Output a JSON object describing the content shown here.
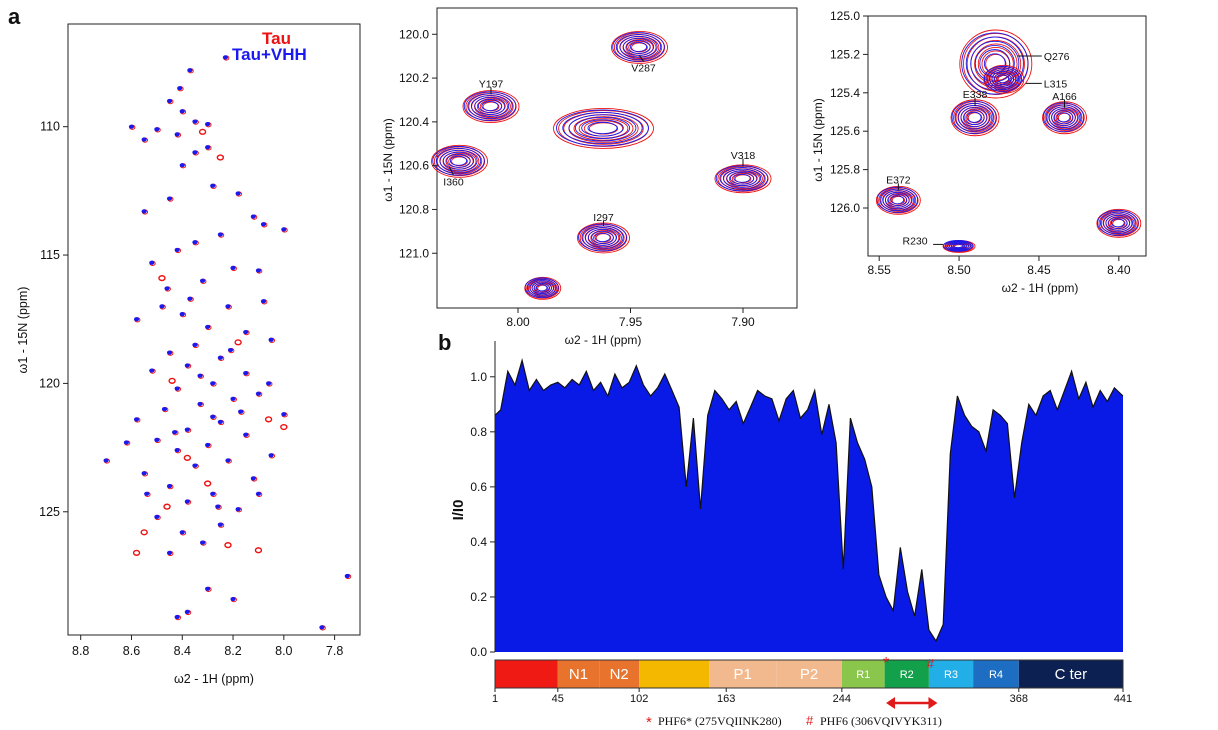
{
  "panel_a_label": "a",
  "panel_b_label": "b",
  "colors": {
    "tau": "#ee1111",
    "vhh": "#1a1aee",
    "fill": "#0a1ae6"
  },
  "chart_data": [
    {
      "type": "scatter",
      "panel": "a-full",
      "legend": [
        "Tau",
        "Tau+VHH"
      ],
      "legend_position": "top-right",
      "xlabel": "ω2 - 1H  (ppm)",
      "ylabel": "ω1 - 15N  (ppm)",
      "xlim": [
        8.85,
        7.7
      ],
      "ylim": [
        129.8,
        106.0
      ],
      "xticks": [
        "8.8",
        "8.6",
        "8.4",
        "8.2",
        "8.0",
        "7.8"
      ],
      "yticks": [
        "110",
        "115",
        "120",
        "125"
      ],
      "peaks_blue": [
        [
          8.23,
          107.3
        ],
        [
          8.37,
          107.8
        ],
        [
          8.41,
          108.5
        ],
        [
          8.45,
          109.0
        ],
        [
          8.4,
          109.4
        ],
        [
          8.35,
          109.8
        ],
        [
          8.3,
          109.9
        ],
        [
          8.42,
          110.3
        ],
        [
          8.5,
          110.1
        ],
        [
          8.55,
          110.5
        ],
        [
          8.6,
          110.0
        ],
        [
          8.35,
          111.0
        ],
        [
          8.3,
          110.8
        ],
        [
          8.4,
          111.5
        ],
        [
          8.28,
          112.3
        ],
        [
          8.18,
          112.6
        ],
        [
          8.45,
          112.8
        ],
        [
          8.55,
          113.3
        ],
        [
          8.12,
          113.5
        ],
        [
          8.08,
          113.8
        ],
        [
          8.0,
          114.0
        ],
        [
          8.25,
          114.2
        ],
        [
          8.35,
          114.5
        ],
        [
          8.42,
          114.8
        ],
        [
          8.52,
          115.3
        ],
        [
          8.2,
          115.5
        ],
        [
          8.1,
          115.6
        ],
        [
          8.32,
          116.0
        ],
        [
          8.46,
          116.3
        ],
        [
          8.08,
          116.8
        ],
        [
          8.22,
          117.0
        ],
        [
          8.4,
          117.3
        ],
        [
          8.58,
          117.5
        ],
        [
          8.3,
          117.8
        ],
        [
          8.15,
          118.0
        ],
        [
          8.05,
          118.3
        ],
        [
          8.35,
          118.5
        ],
        [
          8.45,
          118.8
        ],
        [
          8.25,
          119.0
        ],
        [
          8.38,
          119.3
        ],
        [
          8.52,
          119.5
        ],
        [
          8.15,
          119.6
        ],
        [
          8.28,
          120.0
        ],
        [
          8.42,
          120.2
        ],
        [
          8.1,
          120.4
        ],
        [
          8.2,
          120.6
        ],
        [
          8.33,
          120.8
        ],
        [
          8.47,
          121.0
        ],
        [
          8.0,
          121.2
        ],
        [
          8.58,
          121.4
        ],
        [
          8.25,
          121.5
        ],
        [
          8.38,
          121.8
        ],
        [
          8.15,
          122.0
        ],
        [
          8.5,
          122.2
        ],
        [
          8.3,
          122.4
        ],
        [
          8.42,
          122.6
        ],
        [
          8.05,
          122.8
        ],
        [
          8.22,
          123.0
        ],
        [
          8.35,
          123.2
        ],
        [
          8.55,
          123.5
        ],
        [
          8.12,
          123.7
        ],
        [
          8.45,
          124.0
        ],
        [
          8.28,
          124.3
        ],
        [
          8.38,
          124.6
        ],
        [
          8.18,
          124.9
        ],
        [
          8.5,
          125.2
        ],
        [
          8.25,
          125.5
        ],
        [
          8.4,
          125.8
        ],
        [
          8.32,
          126.2
        ],
        [
          8.45,
          126.6
        ],
        [
          8.3,
          128.0
        ],
        [
          8.2,
          128.4
        ],
        [
          8.38,
          128.9
        ],
        [
          8.42,
          129.1
        ],
        [
          8.7,
          123.0
        ],
        [
          7.75,
          127.5
        ],
        [
          7.85,
          129.5
        ],
        [
          8.28,
          121.3
        ],
        [
          8.33,
          119.7
        ],
        [
          8.48,
          117.0
        ],
        [
          8.21,
          118.7
        ],
        [
          8.37,
          116.7
        ],
        [
          8.43,
          121.9
        ],
        [
          8.26,
          124.8
        ],
        [
          8.17,
          121.1
        ],
        [
          8.06,
          120.0
        ],
        [
          8.54,
          124.3
        ],
        [
          8.62,
          122.3
        ],
        [
          8.1,
          124.3
        ]
      ],
      "peaks_red": [
        [
          8.32,
          110.2
        ],
        [
          8.25,
          111.2
        ],
        [
          8.48,
          115.9
        ],
        [
          8.18,
          118.4
        ],
        [
          8.06,
          121.4
        ],
        [
          8.38,
          122.9
        ],
        [
          8.46,
          124.8
        ],
        [
          8.55,
          125.8
        ],
        [
          8.22,
          126.3
        ],
        [
          8.1,
          126.5
        ],
        [
          8.0,
          121.7
        ],
        [
          8.3,
          123.9
        ],
        [
          8.44,
          119.9
        ],
        [
          8.58,
          126.6
        ]
      ]
    },
    {
      "type": "scatter",
      "panel": "a-zoom1",
      "xlabel": "ω2 - 1H  (ppm)",
      "ylabel": "ω1 - 15N  (ppm)",
      "xlim": [
        8.036,
        7.876
      ],
      "ylim": [
        119.88,
        121.25
      ],
      "xticks": [
        "8.00",
        "7.95",
        "7.90"
      ],
      "yticks": [
        "120.0",
        "120.2",
        "120.4",
        "120.6",
        "120.8",
        "121.0"
      ],
      "peaks": [
        {
          "label": "Y197",
          "x": 8.012,
          "y": 120.33
        },
        {
          "label": "V287",
          "x": 7.946,
          "y": 120.06
        },
        {
          "label": "",
          "x": 7.962,
          "y": 120.43
        },
        {
          "label": "I360",
          "x": 8.026,
          "y": 120.58
        },
        {
          "label": "V318",
          "x": 7.9,
          "y": 120.66
        },
        {
          "label": "I297",
          "x": 7.962,
          "y": 120.93
        },
        {
          "label": "",
          "x": 7.989,
          "y": 121.16
        }
      ]
    },
    {
      "type": "scatter",
      "panel": "a-zoom2",
      "xlabel": "ω2 - 1H  (ppm)",
      "ylabel": "ω1 - 15N  (ppm)",
      "xlim": [
        8.557,
        8.383
      ],
      "ylim": [
        125.0,
        126.25
      ],
      "xticks": [
        "8.55",
        "8.50",
        "8.45",
        "8.40"
      ],
      "yticks": [
        "125.0",
        "125.2",
        "125.4",
        "125.6",
        "125.8",
        "126.0"
      ],
      "peaks": [
        {
          "label": "Q276",
          "x": 8.477,
          "y": 125.25
        },
        {
          "label": "L315",
          "x": 8.472,
          "y": 125.33
        },
        {
          "label": "E338",
          "x": 8.49,
          "y": 125.53
        },
        {
          "label": "A166",
          "x": 8.434,
          "y": 125.53
        },
        {
          "label": "E372",
          "x": 8.538,
          "y": 125.96
        },
        {
          "label": "R230",
          "x": 8.5,
          "y": 126.2
        },
        {
          "label": "",
          "x": 8.4,
          "y": 126.08
        }
      ]
    },
    {
      "type": "area",
      "panel": "b",
      "ylabel": "I/I0",
      "ylim": [
        0.0,
        1.13
      ],
      "xlim": [
        1,
        441
      ],
      "yticks": [
        "0.0",
        "0.2",
        "0.4",
        "0.6",
        "0.8",
        "1.0"
      ],
      "x_ticks": [
        "1",
        "45",
        "102",
        "163",
        "244",
        "368",
        "441"
      ],
      "x": [
        1,
        5,
        10,
        15,
        20,
        25,
        30,
        35,
        40,
        45,
        50,
        55,
        60,
        65,
        70,
        75,
        80,
        85,
        90,
        95,
        100,
        105,
        110,
        115,
        120,
        125,
        130,
        135,
        140,
        145,
        150,
        155,
        160,
        165,
        170,
        175,
        180,
        185,
        190,
        195,
        200,
        205,
        210,
        215,
        220,
        225,
        230,
        235,
        240,
        245,
        250,
        255,
        260,
        265,
        270,
        275,
        280,
        285,
        290,
        295,
        300,
        305,
        310,
        315,
        320,
        325,
        330,
        335,
        340,
        345,
        350,
        355,
        360,
        365,
        370,
        375,
        380,
        385,
        390,
        395,
        400,
        405,
        410,
        415,
        420,
        425,
        430,
        435,
        441
      ],
      "values": [
        0.86,
        0.88,
        1.02,
        0.97,
        1.06,
        0.95,
        0.99,
        0.95,
        0.97,
        0.98,
        0.96,
        0.99,
        0.97,
        1.02,
        0.95,
        0.98,
        0.93,
        1.01,
        0.96,
        0.98,
        1.04,
        0.97,
        0.93,
        0.96,
        1.01,
        0.95,
        0.89,
        0.6,
        0.85,
        0.52,
        0.86,
        0.95,
        0.92,
        0.88,
        0.91,
        0.83,
        0.89,
        0.95,
        0.93,
        0.92,
        0.84,
        0.92,
        0.95,
        0.85,
        0.88,
        0.95,
        0.79,
        0.9,
        0.76,
        0.3,
        0.85,
        0.76,
        0.7,
        0.6,
        0.28,
        0.2,
        0.15,
        0.38,
        0.22,
        0.13,
        0.3,
        0.08,
        0.04,
        0.1,
        0.72,
        0.93,
        0.86,
        0.82,
        0.8,
        0.73,
        0.88,
        0.86,
        0.83,
        0.56,
        0.76,
        0.9,
        0.86,
        0.93,
        0.95,
        0.88,
        0.95,
        1.02,
        0.92,
        0.98,
        0.89,
        0.95,
        0.91,
        0.96,
        0.93
      ],
      "domains": [
        {
          "label": "",
          "start": 1,
          "end": 45,
          "color": "#f01a14"
        },
        {
          "label": "N1",
          "start": 45,
          "end": 74,
          "color": "#e8732c"
        },
        {
          "label": "N2",
          "start": 74,
          "end": 102,
          "color": "#e8732c"
        },
        {
          "label": "",
          "start": 102,
          "end": 151,
          "color": "#f5b800"
        },
        {
          "label": "P1",
          "start": 151,
          "end": 198,
          "color": "#f3b98e"
        },
        {
          "label": "P2",
          "start": 198,
          "end": 244,
          "color": "#f3b98e"
        },
        {
          "label": "R1",
          "start": 244,
          "end": 274,
          "color": "#8ac64c"
        },
        {
          "label": "R2",
          "start": 274,
          "end": 305,
          "color": "#13a04a"
        },
        {
          "label": "R3",
          "start": 305,
          "end": 336,
          "color": "#22aee6"
        },
        {
          "label": "R4",
          "start": 336,
          "end": 368,
          "color": "#1d6ec2"
        },
        {
          "label": "C ter",
          "start": 368,
          "end": 441,
          "color": "#0c2151"
        }
      ],
      "markers": [
        {
          "symbol": "*",
          "residue": 275
        },
        {
          "symbol": "#",
          "residue": 306
        }
      ],
      "arrow_range": [
        275,
        311
      ],
      "footnote_star": "PHF6* (275VQIINK280)",
      "footnote_hash": "PHF6 (306VQIVYK311)"
    }
  ]
}
